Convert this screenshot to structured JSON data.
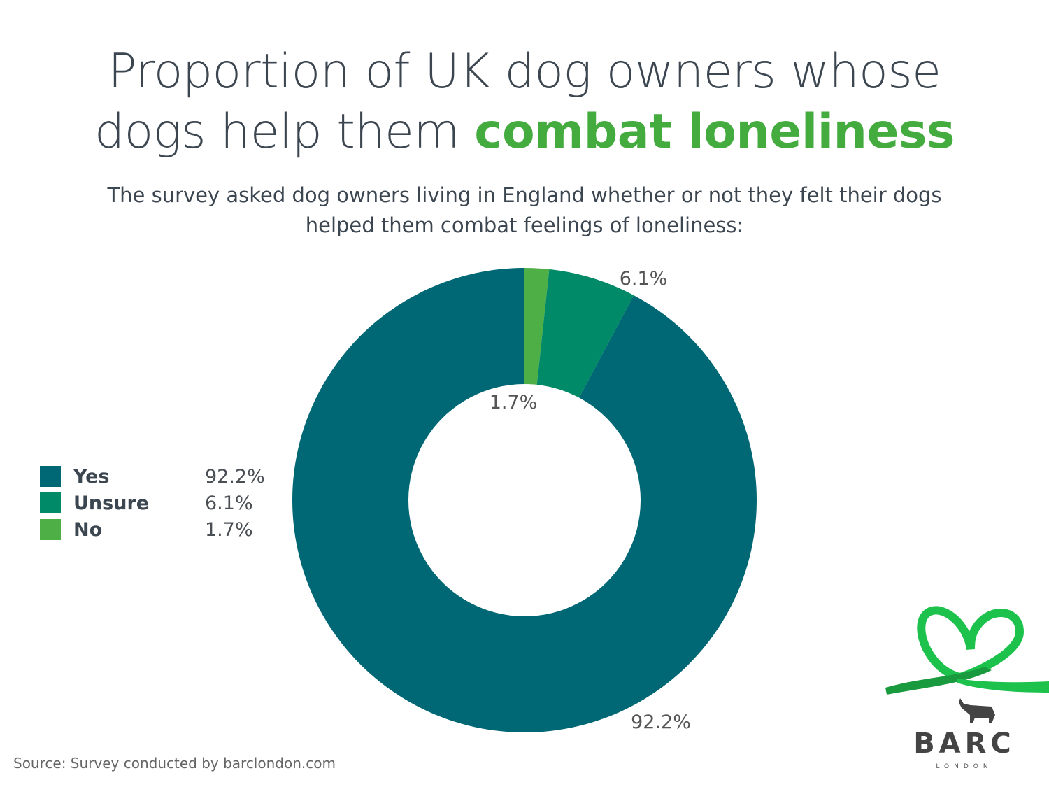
{
  "title": {
    "line1": "Proportion of UK dog owners whose",
    "line2_plain": "dogs help them ",
    "line2_highlight": "combat loneliness"
  },
  "subtitle": "The survey asked dog owners living in England whether or not they felt their dogs helped them combat feelings of loneliness:",
  "source": "Source: Survey conducted by barclondon.com",
  "logo": {
    "name": "BARC",
    "sub": "LONDON"
  },
  "colors": {
    "title": "#3c4650",
    "highlight": "#44ab3e"
  },
  "chart_data": {
    "type": "pie",
    "donut": true,
    "order": "clockwise from top",
    "categories": [
      "No",
      "Unsure",
      "Yes"
    ],
    "values": [
      1.7,
      6.1,
      92.2
    ],
    "labels": [
      "1.7%",
      "6.1%",
      "92.2%"
    ],
    "colors": [
      "#4daf46",
      "#008a67",
      "#006775"
    ],
    "legend_placement": "left",
    "legend": [
      {
        "label": "Yes",
        "value": "92.2%",
        "color": "#006775"
      },
      {
        "label": "Unsure",
        "value": "6.1%",
        "color": "#008a67"
      },
      {
        "label": "No",
        "value": "1.7%",
        "color": "#4daf46"
      }
    ]
  }
}
